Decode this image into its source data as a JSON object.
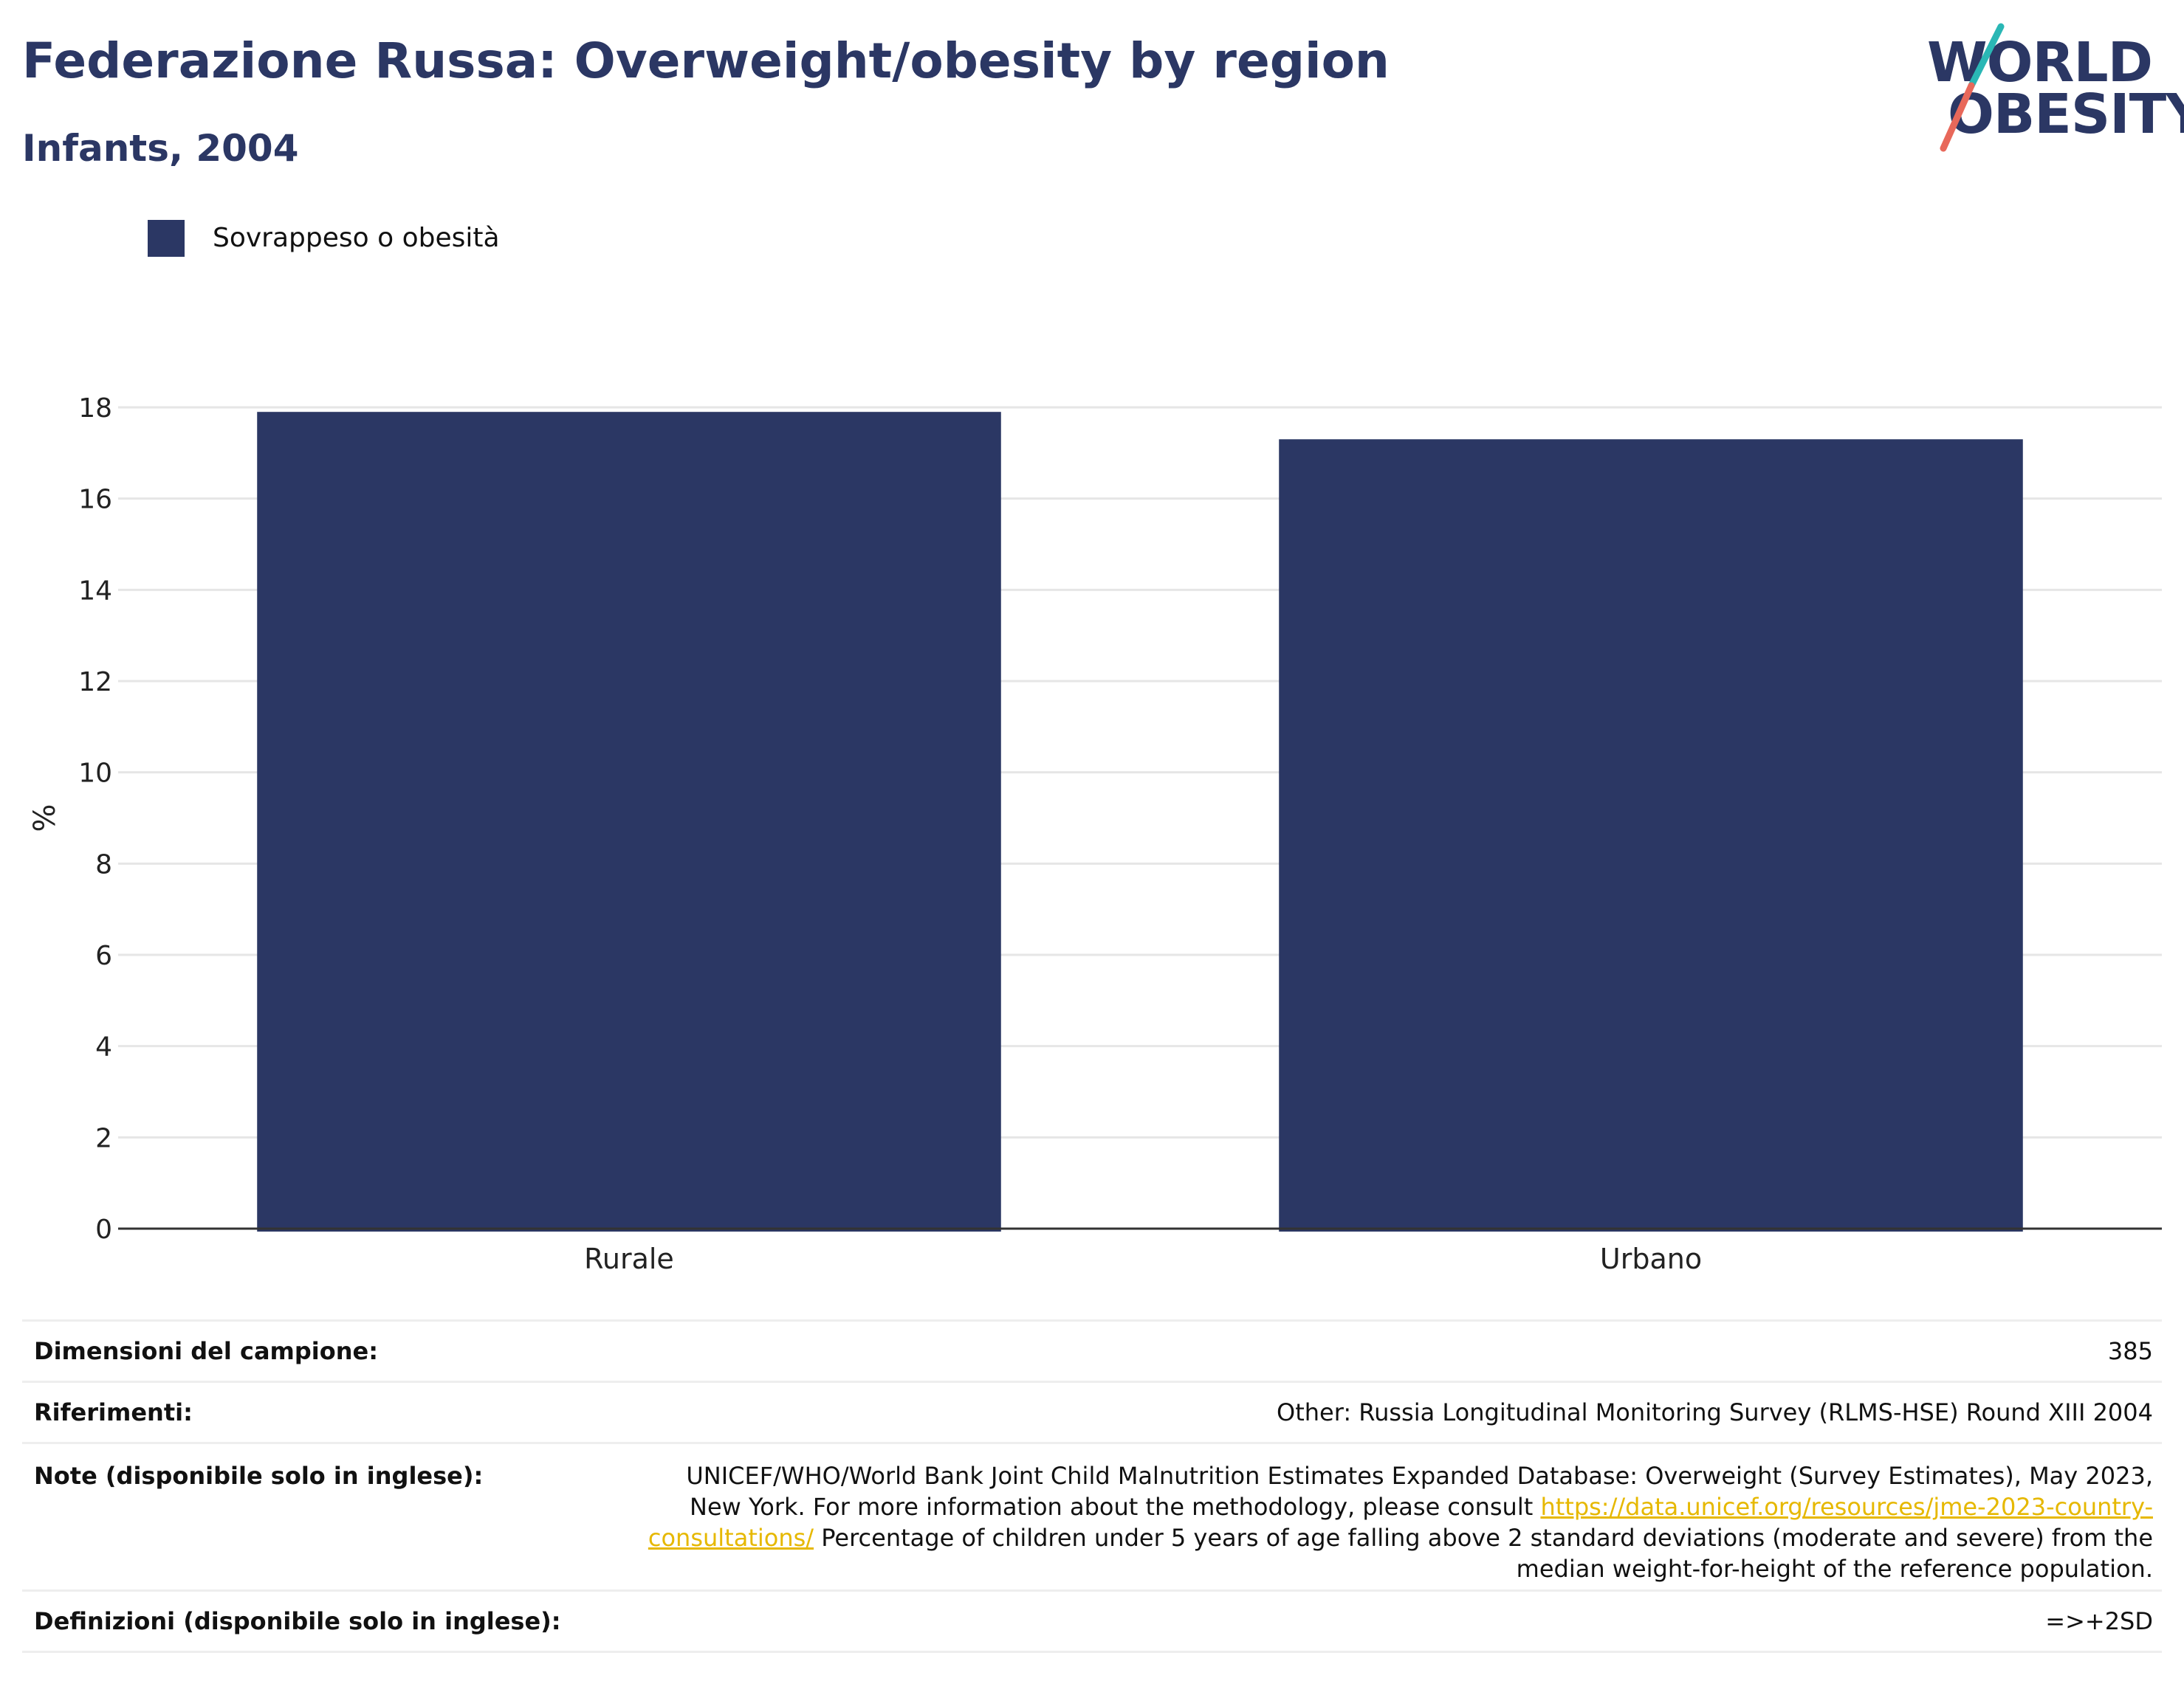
{
  "header": {
    "title": "Federazione Russa: Overweight/obesity by region",
    "subtitle": "Infants, 2004"
  },
  "logo": {
    "line1": "WORLD",
    "line2": "OBESITY",
    "slash_colors": [
      "#2ab7b5",
      "#e8685a"
    ]
  },
  "colors": {
    "bar": "#2b3764",
    "title": "#2b3764",
    "grid": "#e6e6e6",
    "axis": "#333333",
    "link": "#e6b800"
  },
  "chart_data": {
    "type": "bar",
    "categories": [
      "Rurale",
      "Urbano"
    ],
    "series": [
      {
        "name": "Sovrappeso o obesità",
        "values": [
          17.9,
          17.3
        ],
        "color": "#2b3764"
      }
    ],
    "title": "Federazione Russa: Overweight/obesity by region",
    "subtitle": "Infants, 2004",
    "xlabel": "",
    "ylabel": "%",
    "ylim": [
      0,
      18
    ],
    "yticks": [
      0,
      2,
      4,
      6,
      8,
      10,
      12,
      14,
      16,
      18
    ],
    "grid": true,
    "legend": "top-left"
  },
  "info": {
    "sample_label": "Dimensioni del campione:",
    "sample_value": "385",
    "refs_label": "Riferimenti:",
    "refs_value": "Other: Russia Longitudinal Monitoring Survey (RLMS-HSE) Round XIII 2004",
    "notes_label": "Note (disponibile solo in inglese):",
    "notes_text1": "UNICEF/WHO/World Bank Joint Child Malnutrition Estimates Expanded Database: Overweight (Survey Estimates), May 2023, New York. For more information about the methodology, please consult",
    "notes_link": "https://data.unicef.org/resources/jme-2023-country-consultations/",
    "notes_text2": "Percentage of children under 5 years of age falling above 2 standard deviations (moderate and severe) from the median weight-for-height of the reference population.",
    "defs_label": "Definizioni (disponibile solo in inglese):",
    "defs_value": "=>+2SD"
  }
}
